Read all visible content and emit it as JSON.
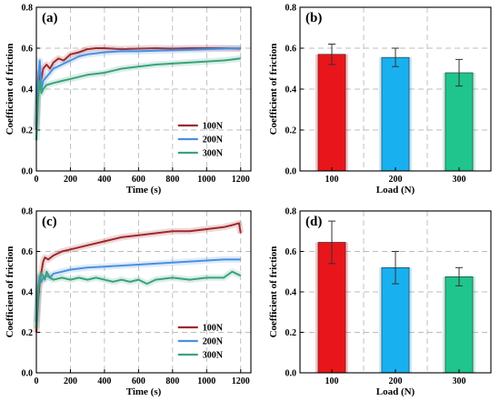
{
  "chart_data": [
    {
      "panel": "(a)",
      "type": "line",
      "xlabel": "Time (s)",
      "ylabel": "Coefficient of friction",
      "xlim": [
        0,
        1260
      ],
      "ylim": [
        0,
        0.8
      ],
      "xticks": [
        0,
        200,
        400,
        600,
        800,
        1000,
        1200
      ],
      "yticks": [
        0.0,
        0.2,
        0.4,
        0.6,
        0.8
      ],
      "grid": true,
      "legend_position": "bottom-right",
      "series": [
        {
          "name": "100N",
          "color": "#a0282a",
          "x": [
            0,
            10,
            20,
            30,
            40,
            60,
            80,
            100,
            130,
            160,
            200,
            250,
            300,
            350,
            400,
            500,
            600,
            700,
            800,
            900,
            1000,
            1100,
            1200
          ],
          "y": [
            0.2,
            0.4,
            0.48,
            0.45,
            0.5,
            0.52,
            0.5,
            0.53,
            0.55,
            0.54,
            0.57,
            0.58,
            0.595,
            0.6,
            0.6,
            0.595,
            0.598,
            0.6,
            0.598,
            0.6,
            0.6,
            0.6,
            0.598
          ]
        },
        {
          "name": "200N",
          "color": "#4a90e0",
          "x": [
            0,
            10,
            20,
            30,
            40,
            60,
            80,
            100,
            150,
            200,
            250,
            300,
            400,
            500,
            600,
            700,
            800,
            900,
            1000,
            1100,
            1200
          ],
          "y": [
            0.22,
            0.45,
            0.54,
            0.4,
            0.44,
            0.46,
            0.48,
            0.5,
            0.52,
            0.54,
            0.56,
            0.57,
            0.58,
            0.585,
            0.585,
            0.588,
            0.59,
            0.592,
            0.595,
            0.598,
            0.6
          ]
        },
        {
          "name": "300N",
          "color": "#3aa37a",
          "x": [
            0,
            10,
            20,
            30,
            40,
            60,
            100,
            150,
            200,
            300,
            400,
            500,
            600,
            700,
            800,
            900,
            1000,
            1100,
            1200
          ],
          "y": [
            0.15,
            0.35,
            0.44,
            0.38,
            0.4,
            0.42,
            0.43,
            0.44,
            0.45,
            0.47,
            0.48,
            0.5,
            0.51,
            0.52,
            0.525,
            0.53,
            0.535,
            0.54,
            0.55
          ]
        }
      ]
    },
    {
      "panel": "(b)",
      "type": "bar",
      "xlabel": "Load (N)",
      "ylabel": "Coefficient of friction",
      "ylim": [
        0,
        0.8
      ],
      "yticks": [
        0.0,
        0.2,
        0.4,
        0.6,
        0.8
      ],
      "grid": true,
      "categories": [
        "100",
        "200",
        "300"
      ],
      "values": [
        0.57,
        0.555,
        0.48
      ],
      "errors": [
        0.05,
        0.045,
        0.065
      ],
      "colors": [
        "#e8161a",
        "#19b0f0",
        "#1fc58c"
      ]
    },
    {
      "panel": "(c)",
      "type": "line",
      "xlabel": "Time (s)",
      "ylabel": "Coefficient of friction",
      "xlim": [
        0,
        1260
      ],
      "ylim": [
        0,
        0.8
      ],
      "xticks": [
        0,
        200,
        400,
        600,
        800,
        1000,
        1200
      ],
      "yticks": [
        0.0,
        0.2,
        0.4,
        0.6,
        0.8
      ],
      "grid": true,
      "legend_position": "bottom-right",
      "series": [
        {
          "name": "100N",
          "color": "#a0282a",
          "x": [
            0,
            10,
            20,
            30,
            40,
            50,
            70,
            100,
            150,
            200,
            300,
            400,
            500,
            600,
            700,
            800,
            900,
            1000,
            1100,
            1150,
            1190,
            1200
          ],
          "y": [
            0.2,
            0.35,
            0.45,
            0.5,
            0.55,
            0.57,
            0.56,
            0.58,
            0.6,
            0.61,
            0.63,
            0.65,
            0.67,
            0.68,
            0.69,
            0.7,
            0.7,
            0.71,
            0.72,
            0.73,
            0.74,
            0.69
          ]
        },
        {
          "name": "200N",
          "color": "#4a90e0",
          "x": [
            0,
            10,
            20,
            30,
            40,
            60,
            80,
            100,
            150,
            200,
            300,
            400,
            500,
            600,
            700,
            800,
            900,
            1000,
            1100,
            1200
          ],
          "y": [
            0.25,
            0.42,
            0.48,
            0.45,
            0.47,
            0.48,
            0.47,
            0.49,
            0.5,
            0.51,
            0.52,
            0.525,
            0.53,
            0.535,
            0.54,
            0.545,
            0.55,
            0.555,
            0.56,
            0.56
          ]
        },
        {
          "name": "300N",
          "color": "#3aa37a",
          "x": [
            0,
            10,
            20,
            30,
            40,
            50,
            60,
            80,
            100,
            150,
            200,
            250,
            300,
            350,
            400,
            450,
            500,
            550,
            600,
            650,
            700,
            800,
            900,
            1000,
            1100,
            1150,
            1200
          ],
          "y": [
            0.22,
            0.4,
            0.47,
            0.49,
            0.48,
            0.46,
            0.5,
            0.47,
            0.46,
            0.47,
            0.46,
            0.47,
            0.46,
            0.47,
            0.46,
            0.45,
            0.46,
            0.45,
            0.46,
            0.44,
            0.46,
            0.47,
            0.46,
            0.47,
            0.47,
            0.5,
            0.48
          ]
        }
      ]
    },
    {
      "panel": "(d)",
      "type": "bar",
      "xlabel": "Load (N)",
      "ylabel": "Coefficient of friction",
      "ylim": [
        0,
        0.8
      ],
      "yticks": [
        0.0,
        0.2,
        0.4,
        0.6,
        0.8
      ],
      "grid": true,
      "categories": [
        "100",
        "200",
        "300"
      ],
      "values": [
        0.645,
        0.52,
        0.475
      ],
      "errors": [
        0.105,
        0.08,
        0.045
      ],
      "colors": [
        "#e8161a",
        "#19b0f0",
        "#1fc58c"
      ]
    }
  ]
}
